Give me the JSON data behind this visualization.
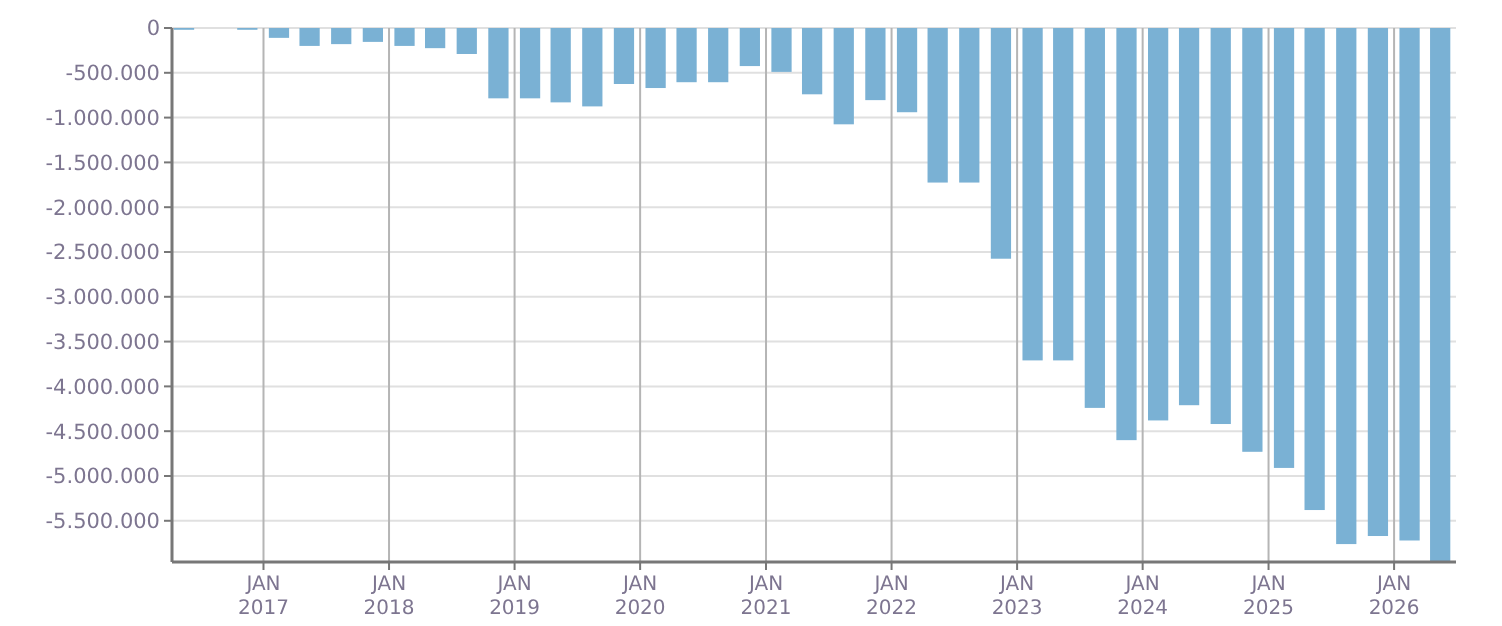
{
  "chart_data": {
    "type": "bar",
    "x": [
      "2016-05-15",
      "2016-08-15",
      "2016-11-15",
      "2017-02-15",
      "2017-05-15",
      "2017-08-15",
      "2017-11-15",
      "2018-02-15",
      "2018-05-15",
      "2018-08-15",
      "2018-11-15",
      "2019-02-15",
      "2019-05-15",
      "2019-08-15",
      "2019-11-15",
      "2020-02-15",
      "2020-05-15",
      "2020-08-15",
      "2020-11-15",
      "2021-02-15",
      "2021-05-15",
      "2021-08-15",
      "2021-11-15",
      "2022-02-15",
      "2022-05-15",
      "2022-08-15",
      "2022-11-15",
      "2023-02-15",
      "2023-05-15",
      "2023-08-15",
      "2023-11-15",
      "2024-02-15",
      "2024-05-15",
      "2024-08-15",
      "2024-11-15",
      "2025-02-15",
      "2025-05-15",
      "2025-08-15",
      "2025-11-15",
      "2026-02-15",
      "2026-05-15"
    ],
    "values": [
      -20000,
      null,
      -20000,
      -110000,
      -200000,
      -180000,
      -155000,
      -200000,
      -225000,
      -290000,
      -785000,
      -785000,
      -830000,
      -875000,
      -625000,
      -670000,
      -605000,
      -605000,
      -425000,
      -490000,
      -740000,
      -1075000,
      -805000,
      -940000,
      -1725000,
      -1725000,
      -2575000,
      -3710000,
      -3710000,
      -4240000,
      -4600000,
      -4380000,
      -4210000,
      -4420000,
      -4730000,
      -4910000,
      -5380000,
      -5760000,
      -5670000,
      -5720000,
      -5950000
    ],
    "color": "#7ab1d4",
    "xlim": [
      "2016-04-10",
      "2026-06-30"
    ],
    "xticks": [
      {
        "value": "2017-01-01",
        "label": "JAN\n2017"
      },
      {
        "value": "2018-01-01",
        "label": "JAN\n2018"
      },
      {
        "value": "2019-01-01",
        "label": "JAN\n2019"
      },
      {
        "value": "2020-01-01",
        "label": "JAN\n2020"
      },
      {
        "value": "2021-01-01",
        "label": "JAN\n2021"
      },
      {
        "value": "2022-01-01",
        "label": "JAN\n2022"
      },
      {
        "value": "2023-01-01",
        "label": "JAN\n2023"
      },
      {
        "value": "2024-01-01",
        "label": "JAN\n2024"
      },
      {
        "value": "2025-01-01",
        "label": "JAN\n2025"
      },
      {
        "value": "2026-01-01",
        "label": "JAN\n2026"
      }
    ],
    "ylim": [
      -5960000,
      0
    ],
    "yticks": [
      {
        "value": 0,
        "label": "0"
      },
      {
        "value": -500000,
        "label": "-500.000"
      },
      {
        "value": -1000000,
        "label": "-1.000.000"
      },
      {
        "value": -1500000,
        "label": "-1.500.000"
      },
      {
        "value": -2000000,
        "label": "-2.000.000"
      },
      {
        "value": -2500000,
        "label": "-2.500.000"
      },
      {
        "value": -3000000,
        "label": "-3.000.000"
      },
      {
        "value": -3500000,
        "label": "-3.500.000"
      },
      {
        "value": -4000000,
        "label": "-4.000.000"
      },
      {
        "value": -4500000,
        "label": "-4.500.000"
      },
      {
        "value": -5000000,
        "label": "-5.000.000"
      },
      {
        "value": -5500000,
        "label": "-5.500.000"
      }
    ],
    "grid": true
  }
}
